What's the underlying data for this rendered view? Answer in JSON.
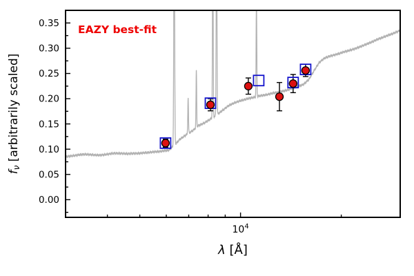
{
  "chart_data": {
    "type": "line",
    "title": "",
    "annotation": {
      "text": "EAZY best-fit",
      "color": "#ee0000"
    },
    "xlabel": {
      "symbol": "λ",
      "rest": " [Å]"
    },
    "ylabel": {
      "symbol": "f",
      "subscript": "ν",
      "rest": " [arbitrarily scaled]"
    },
    "x_scale": "log",
    "grid": false,
    "legend": "none",
    "xlim": [
      3000,
      30000
    ],
    "ylim": [
      -0.035,
      0.375
    ],
    "yticks": [
      0,
      0.05,
      0.1,
      0.15,
      0.2,
      0.25,
      0.3,
      0.35
    ],
    "ytick_labels": [
      "0.00",
      "0.05",
      "0.10",
      "0.15",
      "0.20",
      "0.25",
      "0.30",
      "0.35"
    ],
    "xticks": [
      10000
    ],
    "xtick_labels": [
      "10^4"
    ],
    "x_minor_ticks": [
      4000,
      5000,
      6000,
      7000,
      8000,
      9000,
      20000
    ],
    "series": [
      {
        "name": "model-spectrum",
        "role": "line",
        "color": "#b2b2b2",
        "continuum": [
          [
            3000,
            0.085
          ],
          [
            3400,
            0.09
          ],
          [
            3800,
            0.088
          ],
          [
            4200,
            0.092
          ],
          [
            4600,
            0.091
          ],
          [
            5000,
            0.092
          ],
          [
            5400,
            0.094
          ],
          [
            5800,
            0.096
          ],
          [
            6100,
            0.098
          ],
          [
            6300,
            0.106
          ],
          [
            6600,
            0.12
          ],
          [
            6900,
            0.129
          ],
          [
            7200,
            0.137
          ],
          [
            7500,
            0.147
          ],
          [
            7800,
            0.152
          ],
          [
            8100,
            0.159
          ],
          [
            8400,
            0.166
          ],
          [
            8800,
            0.176
          ],
          [
            9200,
            0.186
          ],
          [
            9600,
            0.192
          ],
          [
            10000,
            0.196
          ],
          [
            10500,
            0.2
          ],
          [
            11000,
            0.203
          ],
          [
            11500,
            0.206
          ],
          [
            12000,
            0.208
          ],
          [
            12500,
            0.211
          ],
          [
            13000,
            0.213
          ],
          [
            13600,
            0.216
          ],
          [
            14200,
            0.22
          ],
          [
            14800,
            0.224
          ],
          [
            15400,
            0.228
          ],
          [
            16000,
            0.238
          ],
          [
            16600,
            0.256
          ],
          [
            17200,
            0.272
          ],
          [
            17800,
            0.28
          ],
          [
            18400,
            0.284
          ],
          [
            19200,
            0.287
          ],
          [
            20000,
            0.291
          ],
          [
            22000,
            0.299
          ],
          [
            24000,
            0.309
          ],
          [
            26000,
            0.319
          ],
          [
            28000,
            0.327
          ],
          [
            30000,
            0.335
          ]
        ],
        "emission_lines": [
          {
            "center": 6336,
            "height": 0.5,
            "sigma": 18
          },
          {
            "center": 6973,
            "height": 0.07,
            "sigma": 16
          },
          {
            "center": 7378,
            "height": 0.115,
            "sigma": 16
          },
          {
            "center": 8264,
            "height": 0.5,
            "sigma": 18
          },
          {
            "center": 8480,
            "height": 0.5,
            "sigma": 20
          },
          {
            "center": 11157,
            "height": 0.21,
            "sigma": 24
          }
        ]
      },
      {
        "name": "template-photometry",
        "role": "scatter",
        "marker": "open-square",
        "color": "#1414cc",
        "points": [
          [
            5970,
            0.112
          ],
          [
            8130,
            0.191
          ],
          [
            11330,
            0.236
          ],
          [
            14360,
            0.232
          ],
          [
            15650,
            0.258
          ]
        ]
      },
      {
        "name": "observed-photometry",
        "role": "scatter",
        "marker": "filled-circle",
        "color": "#dd1111",
        "edge_color": "#000000",
        "points": [
          [
            5970,
            0.112,
            0.008
          ],
          [
            8130,
            0.188,
            0.012
          ],
          [
            10550,
            0.225,
            0.016
          ],
          [
            13070,
            0.204,
            0.028
          ],
          [
            14360,
            0.23,
            0.018
          ],
          [
            15650,
            0.256,
            0.012
          ]
        ]
      }
    ]
  }
}
